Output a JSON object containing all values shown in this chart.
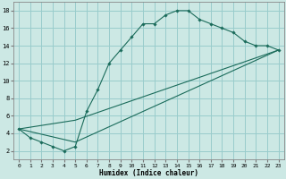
{
  "background_color": "#cce8e4",
  "grid_color": "#99cccc",
  "line_color": "#1a6b5a",
  "xlim": [
    -0.5,
    23.5
  ],
  "ylim": [
    1,
    19
  ],
  "xticks": [
    0,
    1,
    2,
    3,
    4,
    5,
    6,
    7,
    8,
    9,
    10,
    11,
    12,
    13,
    14,
    15,
    16,
    17,
    18,
    19,
    20,
    21,
    22,
    23
  ],
  "yticks": [
    2,
    4,
    6,
    8,
    10,
    12,
    14,
    16,
    18
  ],
  "xlabel": "Humidex (Indice chaleur)",
  "curve1_x": [
    0,
    1,
    2,
    3,
    4,
    5,
    6,
    7,
    8,
    9,
    10,
    11,
    12,
    13,
    14,
    15,
    16,
    17,
    18,
    19,
    20,
    21,
    22,
    23
  ],
  "curve1_y": [
    4.5,
    3.5,
    3.0,
    2.5,
    2.0,
    2.5,
    6.5,
    9.0,
    12.0,
    13.5,
    15.0,
    16.5,
    16.5,
    17.5,
    18.0,
    18.0,
    17.0,
    16.5,
    16.0,
    15.5,
    14.5,
    14.0,
    14.0,
    13.5
  ],
  "curve2_x": [
    0,
    5,
    23
  ],
  "curve2_y": [
    4.5,
    3.0,
    13.5
  ],
  "curve3_x": [
    0,
    5,
    23
  ],
  "curve3_y": [
    4.5,
    5.5,
    13.5
  ]
}
